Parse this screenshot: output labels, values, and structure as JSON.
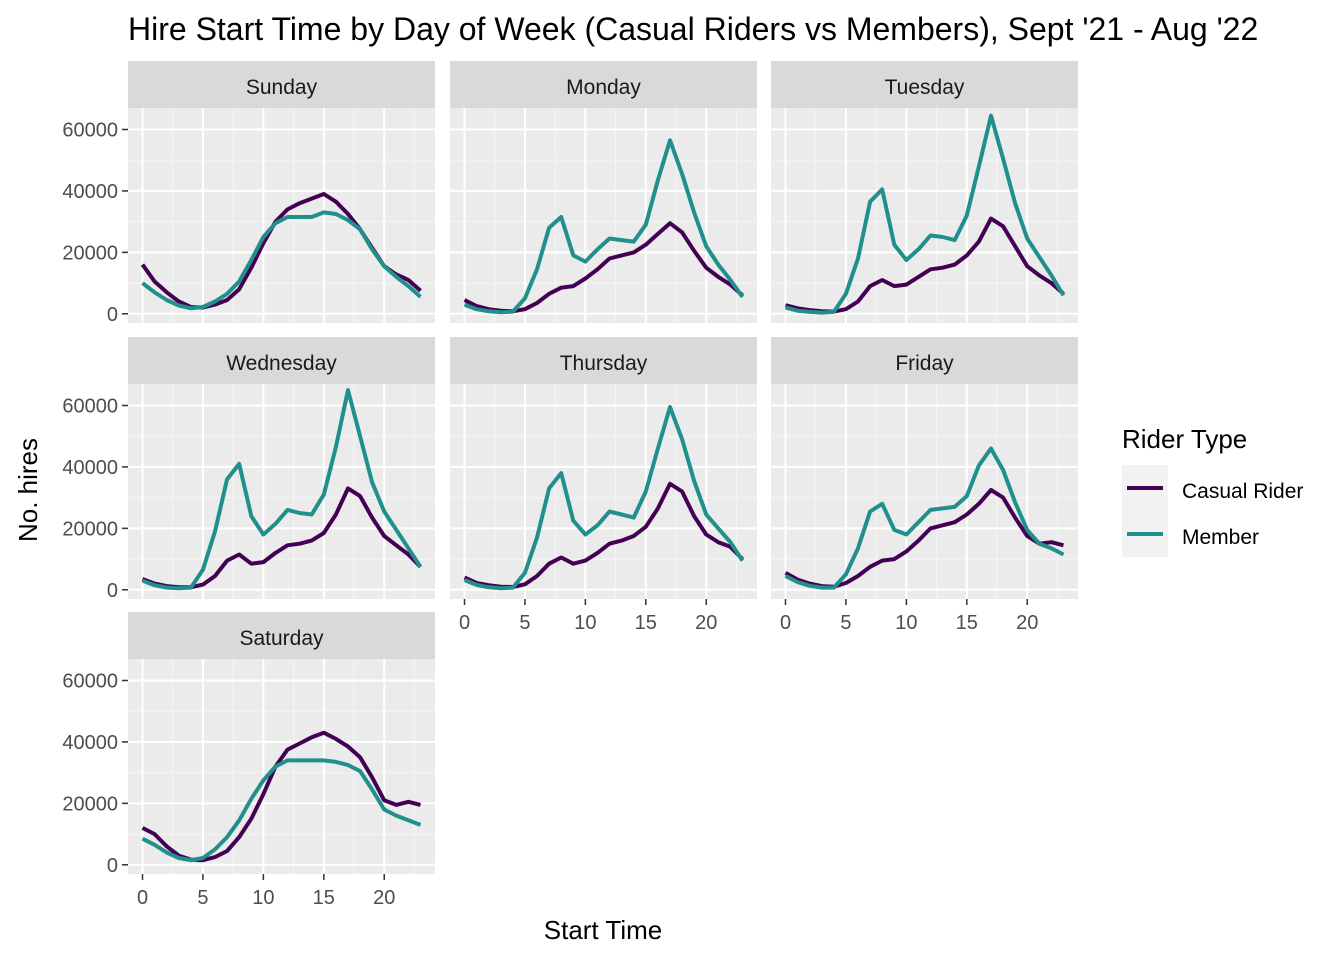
{
  "chart_data": {
    "type": "line",
    "title": "Hire Start Time by Day of Week (Casual Riders vs Members), Sept '21 - Aug '22",
    "xlabel": "Start Time",
    "ylabel": "No. hires",
    "x_ticks": [
      0,
      5,
      10,
      15,
      20
    ],
    "y_ticks": [
      0,
      20000,
      40000,
      60000
    ],
    "xlim": [
      -1.2,
      24.2
    ],
    "ylim": [
      -3000,
      67000
    ],
    "grid": true,
    "legend": {
      "title": "Rider Type",
      "position": "right",
      "entries": [
        {
          "label": "Casual Rider",
          "color": "#440154"
        },
        {
          "label": "Member",
          "color": "#21908c"
        }
      ]
    },
    "x": [
      0,
      1,
      2,
      3,
      4,
      5,
      6,
      7,
      8,
      9,
      10,
      11,
      12,
      13,
      14,
      15,
      16,
      17,
      18,
      19,
      20,
      21,
      22,
      23
    ],
    "panels": [
      {
        "name": "Sunday",
        "series": [
          {
            "name": "Casual Rider",
            "color": "#440154",
            "values": [
              16000,
              10500,
              7000,
              4000,
              2200,
              2000,
              3000,
              4500,
              8000,
              15000,
              23000,
              30000,
              34000,
              36000,
              37500,
              39000,
              36500,
              32500,
              27500,
              21500,
              15500,
              12800,
              11000,
              7500
            ]
          },
          {
            "name": "Member",
            "color": "#21908c",
            "values": [
              10000,
              7000,
              4500,
              2700,
              1800,
              2200,
              4000,
              6500,
              10500,
              17500,
              25000,
              29500,
              31500,
              31500,
              31500,
              33000,
              32500,
              30500,
              27500,
              21000,
              15500,
              12000,
              9000,
              5500
            ]
          }
        ]
      },
      {
        "name": "Monday",
        "series": [
          {
            "name": "Casual Rider",
            "color": "#440154",
            "values": [
              4500,
              2500,
              1500,
              1000,
              800,
              1500,
              3500,
              6500,
              8500,
              9000,
              11500,
              14500,
              18000,
              19000,
              20000,
              22500,
              26000,
              29500,
              26500,
              20500,
              15000,
              12000,
              9500,
              6000
            ]
          },
          {
            "name": "Member",
            "color": "#21908c",
            "values": [
              3000,
              1500,
              800,
              500,
              700,
              5000,
              14500,
              28000,
              31500,
              19000,
              17000,
              21000,
              24500,
              24000,
              23500,
              29000,
              43500,
              56500,
              45500,
              33000,
              22000,
              16000,
              11000,
              5500
            ]
          }
        ]
      },
      {
        "name": "Tuesday",
        "series": [
          {
            "name": "Casual Rider",
            "color": "#440154",
            "values": [
              2800,
              1800,
              1200,
              800,
              700,
              1500,
              4000,
              9000,
              11000,
              9000,
              9500,
              12000,
              14500,
              15000,
              16000,
              19000,
              23500,
              31000,
              28500,
              22000,
              15500,
              12500,
              10000,
              6500
            ]
          },
          {
            "name": "Member",
            "color": "#21908c",
            "values": [
              2000,
              1000,
              600,
              400,
              600,
              6500,
              18000,
              36500,
              40500,
              22500,
              17500,
              21000,
              25500,
              25000,
              24000,
              32000,
              48000,
              64500,
              50500,
              36000,
              24500,
              18500,
              12500,
              6000
            ]
          }
        ]
      },
      {
        "name": "Wednesday",
        "series": [
          {
            "name": "Casual Rider",
            "color": "#440154",
            "values": [
              3500,
              2000,
              1200,
              800,
              800,
              1700,
              4500,
              9500,
              11500,
              8500,
              9000,
              12000,
              14500,
              15000,
              16000,
              18500,
              24500,
              33000,
              30500,
              23500,
              17500,
              14500,
              11500,
              7500
            ]
          },
          {
            "name": "Member",
            "color": "#21908c",
            "values": [
              3000,
              1500,
              700,
              500,
              700,
              6500,
              19000,
              36000,
              41000,
              24000,
              18000,
              21500,
              26000,
              25000,
              24500,
              31000,
              46500,
              65000,
              50000,
              35000,
              25500,
              19500,
              13500,
              7500
            ]
          }
        ]
      },
      {
        "name": "Thursday",
        "series": [
          {
            "name": "Casual Rider",
            "color": "#440154",
            "values": [
              4000,
              2200,
              1500,
              1000,
              900,
              1800,
              4500,
              8500,
              10500,
              8500,
              9500,
              12000,
              15000,
              16000,
              17500,
              20500,
              26500,
              34500,
              32000,
              24000,
              18000,
              15500,
              14000,
              10000
            ]
          },
          {
            "name": "Member",
            "color": "#21908c",
            "values": [
              3200,
              1600,
              800,
              500,
              700,
              5500,
              17000,
              33000,
              38000,
              22500,
              18000,
              21000,
              25500,
              24500,
              23500,
              32000,
              46000,
              59500,
              49000,
              35500,
              24500,
              20000,
              15500,
              9500
            ]
          }
        ]
      },
      {
        "name": "Friday",
        "series": [
          {
            "name": "Casual Rider",
            "color": "#440154",
            "values": [
              5500,
              3300,
              2000,
              1200,
              1000,
              2200,
              4500,
              7500,
              9500,
              10000,
              12500,
              16000,
              20000,
              21000,
              22000,
              24500,
              28000,
              32500,
              30000,
              23500,
              17500,
              15000,
              15500,
              14500
            ]
          },
          {
            "name": "Member",
            "color": "#21908c",
            "values": [
              4500,
              2500,
              1300,
              700,
              700,
              5000,
              13500,
              25500,
              28000,
              19500,
              18000,
              22000,
              26000,
              26500,
              27000,
              30500,
              40500,
              46000,
              39000,
              28500,
              19500,
              15000,
              13500,
              11500
            ]
          }
        ]
      },
      {
        "name": "Saturday",
        "series": [
          {
            "name": "Casual Rider",
            "color": "#440154",
            "values": [
              12000,
              10000,
              6000,
              3000,
              1700,
              1500,
              2500,
              4500,
              9000,
              15000,
              23000,
              32000,
              37500,
              39500,
              41500,
              43000,
              41000,
              38500,
              35000,
              28500,
              21000,
              19500,
              20500,
              19500
            ]
          },
          {
            "name": "Member",
            "color": "#21908c",
            "values": [
              8500,
              6500,
              4000,
              2200,
              1500,
              2200,
              5000,
              9000,
              14500,
              21500,
              27500,
              32000,
              34000,
              34000,
              34000,
              34000,
              33500,
              32500,
              30500,
              24500,
              18000,
              16000,
              14500,
              13000
            ]
          }
        ]
      }
    ]
  }
}
